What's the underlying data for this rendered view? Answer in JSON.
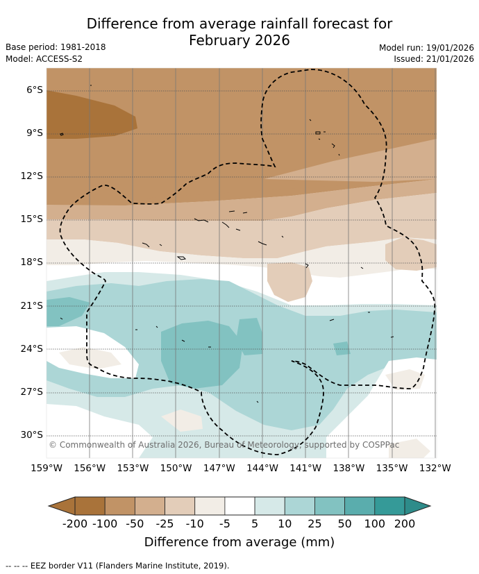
{
  "header": {
    "title_line1": "Difference from average rainfall forecast for",
    "title_line2": "February 2026",
    "base_period": "Base period: 1981-2018",
    "model": "Model: ACCESS-S2",
    "model_run": "Model run: 19/01/2026",
    "issued": "Issued: 21/01/2026"
  },
  "map": {
    "lat_labels": [
      "6°S",
      "9°S",
      "12°S",
      "15°S",
      "18°S",
      "21°S",
      "24°S",
      "27°S",
      "30°S"
    ],
    "lon_labels": [
      "159°W",
      "156°W",
      "153°W",
      "150°W",
      "147°W",
      "144°W",
      "141°W",
      "138°W",
      "135°W",
      "132°W"
    ],
    "copyright": "© Commonwealth of Australia 2026, Bureau of Meteorology, supported by COSPPac"
  },
  "colorbar": {
    "labels": [
      "-200",
      "-100",
      "-50",
      "-25",
      "-10",
      "-5",
      "5",
      "10",
      "25",
      "50",
      "100",
      "200"
    ],
    "colors": [
      "#a9733a",
      "#c19366",
      "#d3af8e",
      "#e3cdb9",
      "#f2ede6",
      "#ffffff",
      "#d6e9e8",
      "#acd6d6",
      "#82c2c1",
      "#5aadad",
      "#359a98"
    ],
    "title": "Difference from average (mm)"
  },
  "legend": {
    "eez_text": "--  --  -- EEZ border V11 (Flanders Marine Institute, 2019)."
  }
}
